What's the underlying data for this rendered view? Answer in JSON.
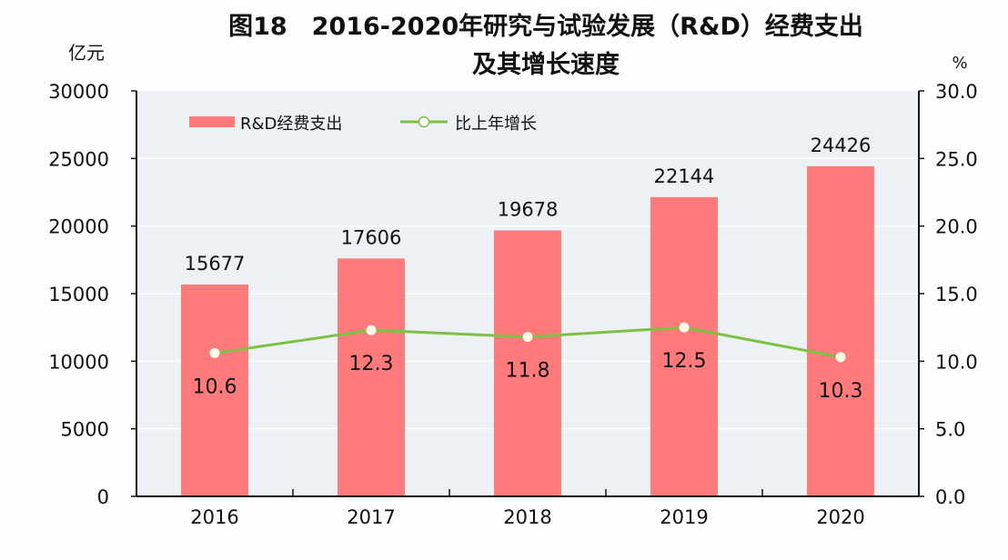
{
  "chart_data": {
    "type": "bar",
    "title_line1": "图18　2016-2020年研究与试验发展（R&D）经费支出",
    "title_line2": "及其增长速度",
    "ylabel_left": "亿元",
    "ylabel_right": "%",
    "categories": [
      "2016",
      "2017",
      "2018",
      "2019",
      "2020"
    ],
    "ylim_left": [
      0,
      30000
    ],
    "ylim_right": [
      0,
      30
    ],
    "yticks_left": [
      "0",
      "5000",
      "10000",
      "15000",
      "20000",
      "25000",
      "30000"
    ],
    "yticks_right": [
      "0.0",
      "5.0",
      "10.0",
      "15.0",
      "20.0",
      "25.0",
      "30.0"
    ],
    "grid": true,
    "legend_placement": "top-left",
    "series": [
      {
        "name": "R&D经费支出",
        "type": "bar",
        "axis": "left",
        "color": "#ff7b7b",
        "values": [
          15677,
          17606,
          19678,
          22144,
          24426
        ],
        "labels": [
          "15677",
          "17606",
          "19678",
          "22144",
          "24426"
        ]
      },
      {
        "name": "比上年增长",
        "type": "line",
        "axis": "right",
        "color": "#7cc242",
        "values": [
          10.6,
          12.3,
          11.8,
          12.5,
          10.3
        ],
        "labels": [
          "10.6",
          "12.3",
          "11.8",
          "12.5",
          "10.3"
        ]
      }
    ]
  }
}
